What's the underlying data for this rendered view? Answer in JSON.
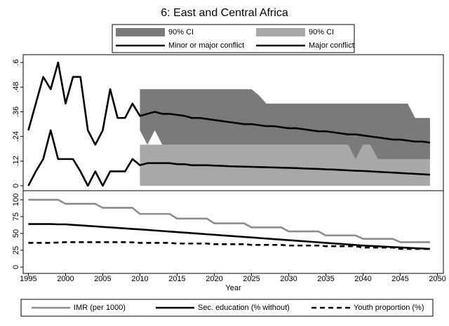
{
  "title": "6: East and Central Africa",
  "chart_data": [
    {
      "type": "line",
      "x": [
        1995,
        1996,
        1997,
        1998,
        1999,
        2000,
        2001,
        2002,
        2003,
        2004,
        2005,
        2006,
        2007,
        2008,
        2009,
        2010,
        2011,
        2012,
        2013,
        2014,
        2015,
        2016,
        2017,
        2018,
        2019,
        2020,
        2021,
        2022,
        2023,
        2024,
        2025,
        2026,
        2027,
        2028,
        2029,
        2030,
        2031,
        2032,
        2033,
        2034,
        2035,
        2036,
        2037,
        2038,
        2039,
        2040,
        2041,
        2042,
        2043,
        2044,
        2045,
        2046,
        2047,
        2048,
        2049
      ],
      "xlim": [
        1994.3,
        2050.8
      ],
      "ylim": [
        -0.024,
        0.638
      ],
      "yticks": [
        {
          "value": 0.6,
          "label": ".6"
        },
        {
          "value": 0.48,
          "label": ".48"
        },
        {
          "value": 0.36,
          "label": ".36"
        },
        {
          "value": 0.24,
          "label": ".24"
        },
        {
          "value": 0.12,
          "label": ".12"
        },
        0
      ],
      "legend": "top",
      "series": [
        {
          "name": "90% CI",
          "type": "area",
          "color": "#7a7a7a",
          "x": [
            2010,
            2011,
            2012,
            2013,
            2014,
            2015,
            2016,
            2017,
            2018,
            2019,
            2020,
            2021,
            2022,
            2023,
            2024,
            2025,
            2026,
            2027,
            2028,
            2029,
            2030,
            2031,
            2032,
            2033,
            2034,
            2035,
            2036,
            2037,
            2038,
            2039,
            2040,
            2041,
            2042,
            2043,
            2044,
            2045,
            2046,
            2047,
            2048,
            2049
          ],
          "upper": [
            0.47,
            0.47,
            0.47,
            0.47,
            0.47,
            0.47,
            0.47,
            0.47,
            0.47,
            0.47,
            0.47,
            0.47,
            0.47,
            0.47,
            0.47,
            0.47,
            0.44,
            0.4,
            0.4,
            0.4,
            0.4,
            0.4,
            0.4,
            0.4,
            0.4,
            0.4,
            0.4,
            0.4,
            0.4,
            0.4,
            0.4,
            0.4,
            0.4,
            0.4,
            0.4,
            0.4,
            0.4,
            0.33,
            0.33,
            0.33
          ],
          "lower": [
            0.27,
            0.2,
            0.27,
            0.2,
            0.2,
            0.2,
            0.2,
            0.2,
            0.2,
            0.2,
            0.2,
            0.2,
            0.2,
            0.2,
            0.2,
            0.2,
            0.2,
            0.2,
            0.2,
            0.2,
            0.2,
            0.2,
            0.2,
            0.2,
            0.2,
            0.2,
            0.2,
            0.2,
            0.2,
            0.13,
            0.2,
            0.2,
            0.13,
            0.13,
            0.13,
            0.13,
            0.13,
            0.13,
            0.13,
            0.13
          ]
        },
        {
          "name": "90% CI",
          "type": "area",
          "color": "#a8a8a8",
          "x": [
            2010,
            2011,
            2012,
            2013,
            2014,
            2015,
            2016,
            2017,
            2018,
            2019,
            2020,
            2021,
            2022,
            2023,
            2024,
            2025,
            2026,
            2027,
            2028,
            2029,
            2030,
            2031,
            2032,
            2033,
            2034,
            2035,
            2036,
            2037,
            2038,
            2039,
            2040,
            2041,
            2042,
            2043,
            2044,
            2045,
            2046,
            2047,
            2048,
            2049
          ],
          "upper": [
            0.2,
            0.2,
            0.2,
            0.2,
            0.2,
            0.2,
            0.2,
            0.2,
            0.2,
            0.2,
            0.2,
            0.2,
            0.2,
            0.2,
            0.2,
            0.2,
            0.2,
            0.2,
            0.2,
            0.2,
            0.2,
            0.2,
            0.2,
            0.2,
            0.2,
            0.2,
            0.2,
            0.2,
            0.2,
            0.2,
            0.2,
            0.2,
            0.2,
            0.2,
            0.2,
            0.2,
            0.2,
            0.2,
            0.2,
            0.2
          ],
          "lower": [
            0,
            0,
            0,
            0,
            0,
            0,
            0,
            0,
            0,
            0,
            0,
            0,
            0,
            0,
            0,
            0,
            0,
            0,
            0,
            0,
            0,
            0,
            0,
            0,
            0,
            0,
            0,
            0,
            0,
            0,
            0,
            0,
            0,
            0,
            0,
            0,
            0,
            0,
            0,
            0
          ]
        },
        {
          "name": "Minor or major conflict",
          "type": "line",
          "color": "#000000",
          "values": [
            0.27,
            0.4,
            0.53,
            0.47,
            0.6,
            0.4,
            0.53,
            0.53,
            0.27,
            0.2,
            0.27,
            0.47,
            0.33,
            0.33,
            0.4,
            0.34,
            0.35,
            0.36,
            0.35,
            0.35,
            0.345,
            0.34,
            0.33,
            0.33,
            0.325,
            0.32,
            0.315,
            0.31,
            0.305,
            0.3,
            0.3,
            0.295,
            0.29,
            0.29,
            0.285,
            0.28,
            0.28,
            0.275,
            0.27,
            0.265,
            0.265,
            0.26,
            0.255,
            0.25,
            0.25,
            0.245,
            0.24,
            0.235,
            0.23,
            0.225,
            0.225,
            0.22,
            0.215,
            0.215,
            0.21
          ]
        },
        {
          "name": "Major conflict",
          "type": "line",
          "color": "#000000",
          "values": [
            0,
            0.07,
            0.13,
            0.27,
            0.13,
            0.13,
            0.13,
            0.07,
            0,
            0.07,
            0,
            0.07,
            0.07,
            0.07,
            0.13,
            0.1,
            0.11,
            0.11,
            0.11,
            0.11,
            0.105,
            0.105,
            0.1,
            0.1,
            0.1,
            0.098,
            0.097,
            0.095,
            0.094,
            0.093,
            0.092,
            0.091,
            0.09,
            0.089,
            0.088,
            0.087,
            0.086,
            0.084,
            0.083,
            0.082,
            0.08,
            0.079,
            0.077,
            0.075,
            0.073,
            0.072,
            0.07,
            0.068,
            0.066,
            0.064,
            0.062,
            0.06,
            0.058,
            0.056,
            0.054
          ]
        }
      ]
    },
    {
      "type": "line",
      "x": [
        1995,
        1996,
        1997,
        1998,
        1999,
        2000,
        2001,
        2002,
        2003,
        2004,
        2005,
        2006,
        2007,
        2008,
        2009,
        2010,
        2011,
        2012,
        2013,
        2014,
        2015,
        2016,
        2017,
        2018,
        2019,
        2020,
        2021,
        2022,
        2023,
        2024,
        2025,
        2026,
        2027,
        2028,
        2029,
        2030,
        2031,
        2032,
        2033,
        2034,
        2035,
        2036,
        2037,
        2038,
        2039,
        2040,
        2041,
        2042,
        2043,
        2044,
        2045,
        2046,
        2047,
        2048,
        2049
      ],
      "xlabel": "Year",
      "xlim": [
        1994.3,
        2050.8
      ],
      "xticks": [
        1995,
        2000,
        2005,
        2010,
        2015,
        2020,
        2025,
        2030,
        2035,
        2040,
        2045,
        2050
      ],
      "ylim": [
        -9.4,
        113.5
      ],
      "yticks": [
        0,
        25,
        50,
        75,
        100
      ],
      "legend": "bottom",
      "series": [
        {
          "name": "IMR (per 1000)",
          "color": "#8c8c8c",
          "dash": false,
          "values": [
            100,
            100,
            100,
            100,
            100,
            94,
            94,
            94,
            94,
            94,
            88,
            88,
            88,
            88,
            88,
            79,
            79,
            79,
            79,
            79,
            72,
            72,
            72,
            72,
            72,
            65,
            65,
            65,
            65,
            65,
            59,
            59,
            59,
            59,
            59,
            53,
            53,
            53,
            53,
            53,
            47,
            47,
            47,
            47,
            47,
            42,
            42,
            42,
            42,
            42,
            37,
            37,
            37,
            37,
            37
          ]
        },
        {
          "name": "Sec. education (% without)",
          "color": "#000000",
          "dash": false,
          "values": [
            64,
            64,
            64,
            64,
            63.5,
            63.5,
            62.7,
            62,
            61.2,
            60.5,
            59.7,
            59,
            58.2,
            57.5,
            56.7,
            56,
            55.2,
            54.4,
            53.6,
            52.8,
            52,
            51.2,
            50.4,
            49.6,
            48.8,
            48,
            47.2,
            46.4,
            45.6,
            44.8,
            44,
            43.2,
            42.4,
            41.6,
            40.8,
            40,
            39.2,
            38.4,
            37.6,
            36.8,
            36,
            35.2,
            34.4,
            33.6,
            32.8,
            32,
            31.4,
            30.9,
            30.3,
            29.8,
            29.2,
            28.7,
            28.1,
            27.6,
            27
          ]
        },
        {
          "name": "Youth proportion (%)",
          "color": "#000000",
          "dash": true,
          "values": [
            36,
            36,
            36,
            36,
            36.5,
            37,
            37,
            37,
            37,
            37,
            37,
            37,
            37,
            37,
            36.8,
            36,
            36,
            36,
            36,
            36,
            35,
            35,
            35,
            35,
            35,
            34,
            34,
            34,
            34,
            34,
            33,
            33,
            33,
            33,
            33,
            32,
            32,
            32,
            32,
            32,
            31,
            31,
            31,
            31,
            31,
            29,
            29,
            29,
            29,
            29,
            27,
            27,
            27,
            27,
            27
          ]
        }
      ]
    }
  ]
}
